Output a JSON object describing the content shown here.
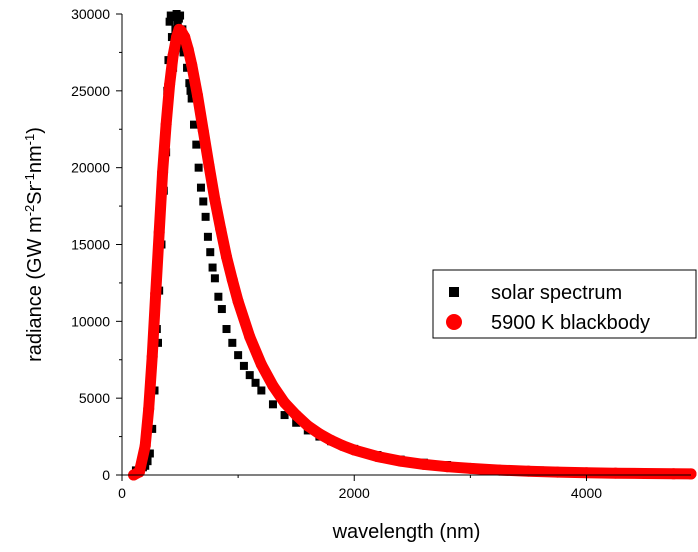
{
  "chart_data": {
    "type": "scatter",
    "xlabel": "wavelength (nm)",
    "ylabel_parts": [
      {
        "text": "radiance (GW m",
        "sup": false
      },
      {
        "text": "-2",
        "sup": true
      },
      {
        "text": "Sr",
        "sup": false
      },
      {
        "text": "-1",
        "sup": true
      },
      {
        "text": "nm",
        "sup": false
      },
      {
        "text": "-1",
        "sup": true
      },
      {
        "text": ")",
        "sup": false
      }
    ],
    "xlim": [
      0,
      4900
    ],
    "ylim": [
      0,
      30000
    ],
    "x_ticks": [
      0,
      2000,
      4000
    ],
    "y_ticks": [
      0,
      5000,
      10000,
      15000,
      20000,
      25000,
      30000
    ],
    "grid": false,
    "legend_position": "right",
    "series": [
      {
        "name": "solar spectrum",
        "marker": "square",
        "color": "#000000",
        "x": [
          120,
          150,
          180,
          200,
          220,
          240,
          260,
          280,
          300,
          310,
          320,
          330,
          340,
          350,
          360,
          370,
          380,
          390,
          400,
          410,
          420,
          430,
          440,
          450,
          460,
          470,
          480,
          490,
          500,
          510,
          520,
          530,
          540,
          550,
          560,
          570,
          580,
          590,
          600,
          620,
          640,
          660,
          680,
          700,
          720,
          740,
          760,
          780,
          800,
          830,
          860,
          900,
          950,
          1000,
          1050,
          1100,
          1150,
          1200,
          1300,
          1400,
          1500,
          1600,
          1700,
          1800,
          1900,
          2000,
          2200,
          2400,
          2600,
          2800,
          3000,
          3300,
          3600,
          4000,
          4400,
          4800
        ],
        "y": [
          300,
          400,
          500,
          600,
          900,
          1400,
          3000,
          5500,
          9500,
          8600,
          12000,
          16500,
          15000,
          20000,
          18500,
          22500,
          21000,
          25000,
          27000,
          29500,
          29900,
          28500,
          26500,
          29800,
          29000,
          30000,
          29500,
          29700,
          29900,
          28000,
          29000,
          27500,
          28500,
          27800,
          26500,
          27500,
          25500,
          25000,
          24500,
          22800,
          21500,
          20000,
          18700,
          17800,
          16800,
          15500,
          14500,
          13500,
          12800,
          11600,
          10800,
          9500,
          8600,
          7800,
          7100,
          6500,
          6000,
          5500,
          4600,
          3900,
          3400,
          2900,
          2500,
          2200,
          1900,
          1700,
          1300,
          1000,
          800,
          650,
          500,
          380,
          300,
          220,
          170,
          130
        ]
      },
      {
        "name": "5900 K blackbody",
        "marker": "circle",
        "color": "#ff0000",
        "x": [
          100,
          150,
          200,
          230,
          260,
          290,
          320,
          350,
          380,
          410,
          440,
          470,
          491,
          510,
          540,
          570,
          600,
          650,
          700,
          750,
          800,
          850,
          900,
          950,
          1000,
          1100,
          1200,
          1300,
          1400,
          1500,
          1600,
          1700,
          1800,
          1900,
          2000,
          2200,
          2400,
          2600,
          2800,
          3000,
          3250,
          3500,
          3750,
          4000,
          4250,
          4500,
          4750,
          4900
        ],
        "y": [
          2,
          200,
          1900,
          4300,
          7700,
          11800,
          15800,
          19700,
          22800,
          25400,
          27300,
          28500,
          29000,
          28900,
          28500,
          27700,
          26700,
          24700,
          22400,
          20100,
          17900,
          16000,
          14200,
          12700,
          11300,
          9000,
          7200,
          5800,
          4700,
          3900,
          3200,
          2680,
          2260,
          1910,
          1630,
          1200,
          900,
          690,
          540,
          430,
          320,
          250,
          190,
          150,
          120,
          96,
          78,
          70
        ]
      }
    ]
  }
}
